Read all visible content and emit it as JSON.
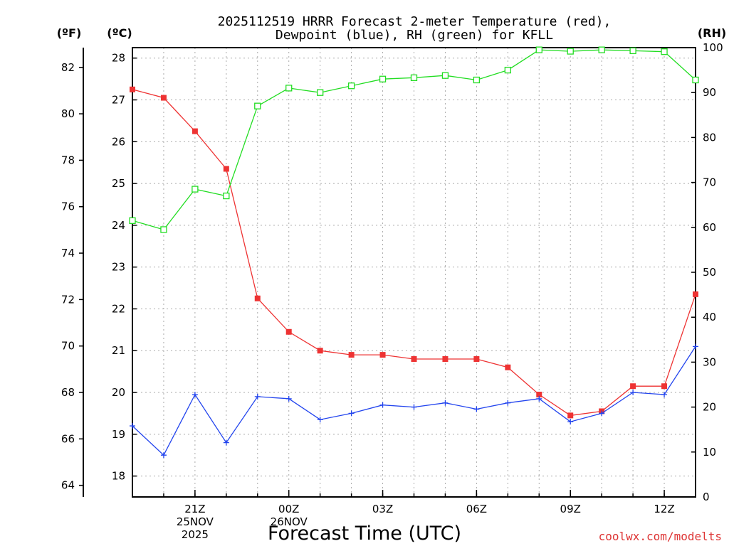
{
  "chart_data": {
    "type": "line",
    "title_lines": [
      "2025112519 HRRR Forecast 2-meter Temperature (red),",
      "Dewpoint (blue), RH (green) for KFLL"
    ],
    "xlabel": "Forecast Time (UTC)",
    "watermark": "coolwx.com/modelts",
    "axes": {
      "left_f": {
        "unit_label": "(ºF)",
        "ticks": [
          64,
          66,
          68,
          70,
          72,
          74,
          76,
          78,
          80,
          82
        ]
      },
      "left_c": {
        "unit_label": "(ºC)",
        "ticks": [
          18,
          19,
          20,
          21,
          22,
          23,
          24,
          25,
          26,
          27,
          28
        ],
        "ylim": [
          17.5,
          28.25
        ]
      },
      "right_rh": {
        "unit_label": "(RH)",
        "ticks": [
          0,
          10,
          20,
          30,
          40,
          50,
          60,
          70,
          80,
          90,
          100
        ],
        "ylim": [
          0,
          100
        ]
      }
    },
    "x": {
      "hours": [
        19,
        20,
        21,
        22,
        23,
        24,
        25,
        26,
        27,
        28,
        29,
        30,
        31,
        32,
        33,
        34,
        35,
        36,
        37
      ],
      "xlim": [
        19,
        37
      ],
      "ticks": [
        {
          "hour": 21,
          "lines": [
            "21Z",
            "25NOV",
            "2025"
          ]
        },
        {
          "hour": 24,
          "lines": [
            "00Z",
            "26NOV"
          ]
        },
        {
          "hour": 27,
          "lines": [
            "03Z"
          ]
        },
        {
          "hour": 30,
          "lines": [
            "06Z"
          ]
        },
        {
          "hour": 33,
          "lines": [
            "09Z"
          ]
        },
        {
          "hour": 36,
          "lines": [
            "12Z"
          ]
        }
      ]
    },
    "series": [
      {
        "name": "Temperature",
        "axis": "left_c",
        "color": "#ee3333",
        "marker": "filled-square",
        "values": [
          27.25,
          27.05,
          26.25,
          25.35,
          22.25,
          21.45,
          21.0,
          20.9,
          20.9,
          20.8,
          20.8,
          20.8,
          20.6,
          19.95,
          19.45,
          19.55,
          20.15,
          20.15,
          22.35
        ]
      },
      {
        "name": "Dewpoint",
        "axis": "left_c",
        "color": "#2244ee",
        "marker": "plus",
        "values": [
          19.2,
          18.5,
          19.95,
          18.8,
          19.9,
          19.85,
          19.35,
          19.5,
          19.7,
          19.65,
          19.75,
          19.6,
          19.75,
          19.85,
          19.3,
          19.5,
          20.0,
          19.95,
          21.1
        ]
      },
      {
        "name": "RH",
        "axis": "right_rh",
        "color": "#22dd22",
        "marker": "open-square",
        "values": [
          61.5,
          59.5,
          68.5,
          67.0,
          87.0,
          91.0,
          90.0,
          91.5,
          93.0,
          93.3,
          93.8,
          92.8,
          95.0,
          99.5,
          99.2,
          99.5,
          99.3,
          99.1,
          92.8
        ]
      }
    ]
  }
}
